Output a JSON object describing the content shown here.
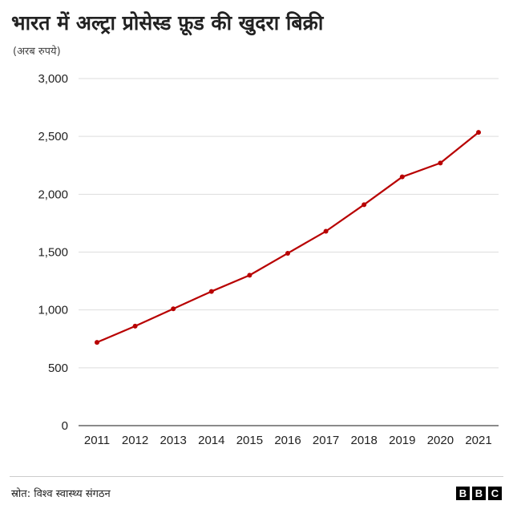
{
  "chart_data": {
    "type": "line",
    "title": "भारत में अल्ट्रा प्रोसेस्ड फ़ूड की खुदरा बिक्री",
    "subtitle": "(अरब रुपये)",
    "categories": [
      "2011",
      "2012",
      "2013",
      "2014",
      "2015",
      "2016",
      "2017",
      "2018",
      "2019",
      "2020",
      "2021"
    ],
    "series": [
      {
        "values": [
          720,
          860,
          1010,
          1160,
          1300,
          1490,
          1680,
          1910,
          2150,
          2270,
          2535
        ]
      }
    ],
    "yticks": [
      "0",
      "500",
      "1,000",
      "1,500",
      "2,000",
      "2,500",
      "3,000"
    ],
    "ylim": [
      0,
      3000
    ],
    "grid": true,
    "line_color": "#b80000"
  },
  "footer": {
    "source": "स्रोत: विश्व स्वास्थ्य संगठन",
    "logo_letters": [
      "B",
      "B",
      "C"
    ]
  }
}
